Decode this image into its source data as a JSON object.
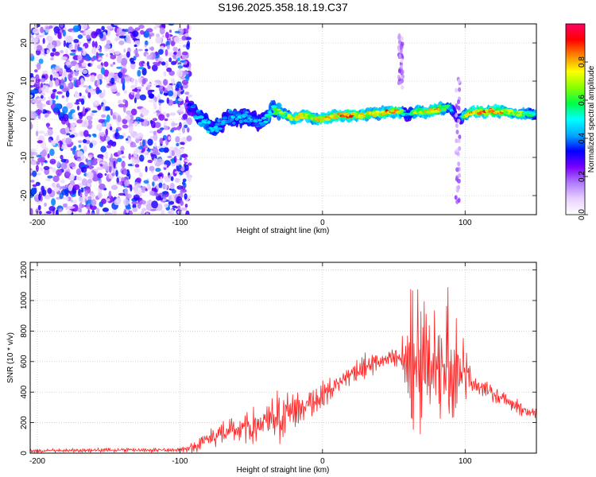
{
  "title": "S196.2025.358.18.19.C37",
  "chart_data": [
    {
      "type": "heatmap",
      "xlabel": "Height of straight line (km)",
      "ylabel": "Frequency (Hz)",
      "xlim": [
        -205,
        150
      ],
      "ylim": [
        -25,
        25
      ],
      "xticks": [
        -200,
        -100,
        0,
        100
      ],
      "yticks": [
        -20,
        -10,
        0,
        10,
        20
      ],
      "colorbar": {
        "label": "Normalized spectral amplitude",
        "range": [
          0,
          1
        ],
        "ticks": [
          "0.0",
          "0.2",
          "0.4",
          "0.6",
          "0.8"
        ],
        "colors": [
          "#ffffff",
          "#e8d0ff",
          "#b07cff",
          "#7a00ff",
          "#0000ff",
          "#00aaff",
          "#00ffff",
          "#00ff44",
          "#88ff00",
          "#ffff00",
          "#ff8800",
          "#ff0000",
          "#ff0066"
        ]
      },
      "noise_region": {
        "x": [
          -205,
          -93
        ],
        "amplitude": 0.35
      },
      "ridge": {
        "x": [
          -95,
          -90,
          -85,
          -80,
          -75,
          -70,
          -65,
          -60,
          -55,
          -50,
          -45,
          -40,
          -35,
          -30,
          -25,
          -20,
          -15,
          -10,
          -5,
          0,
          5,
          10,
          15,
          20,
          25,
          30,
          35,
          40,
          45,
          50,
          55,
          60,
          65,
          70,
          75,
          80,
          85,
          90,
          95,
          100,
          105,
          110,
          115,
          120,
          125,
          130,
          135,
          140,
          145,
          150
        ],
        "freq": [
          4,
          2,
          0,
          -2,
          -2,
          -1,
          1,
          0,
          1,
          0,
          -1,
          0,
          3,
          2,
          1,
          0,
          1,
          1,
          0,
          0,
          0.5,
          1,
          1,
          1,
          1,
          1,
          1.5,
          1.5,
          2,
          2,
          2,
          1,
          2,
          2,
          2,
          2.5,
          3,
          3,
          0,
          1,
          2,
          2,
          2,
          2,
          2,
          2,
          1.5,
          1.5,
          1.5,
          1.5
        ],
        "amp": [
          0.3,
          0.45,
          0.5,
          0.5,
          0.5,
          0.45,
          0.5,
          0.5,
          0.5,
          0.5,
          0.45,
          0.5,
          0.6,
          0.7,
          0.7,
          0.75,
          0.8,
          0.75,
          0.75,
          0.85,
          0.8,
          0.85,
          0.9,
          0.9,
          0.8,
          0.8,
          0.75,
          0.8,
          0.9,
          0.9,
          0.8,
          0.4,
          0.7,
          0.8,
          0.75,
          0.9,
          0.7,
          0.5,
          0.3,
          0.7,
          0.85,
          0.9,
          0.9,
          0.9,
          0.85,
          0.8,
          0.75,
          0.7,
          0.65,
          0.6
        ]
      }
    },
    {
      "type": "line",
      "xlabel": "Height of straight line (km)",
      "ylabel": "SNR (10 * v/v)",
      "xlim": [
        -205,
        150
      ],
      "ylim": [
        0,
        1250
      ],
      "xticks": [
        -200,
        -100,
        0,
        100
      ],
      "yticks": [
        0,
        200,
        400,
        600,
        800,
        1000,
        1200
      ],
      "color": "#ff2020",
      "series": [
        {
          "name": "SNR",
          "x": [
            -205,
            -180,
            -150,
            -120,
            -100,
            -90,
            -80,
            -70,
            -60,
            -50,
            -40,
            -30,
            -20,
            -10,
            0,
            10,
            20,
            30,
            40,
            50,
            55,
            60,
            65,
            70,
            75,
            80,
            85,
            90,
            95,
            100,
            105,
            110,
            120,
            130,
            140,
            150
          ],
          "envelope": [
            15,
            18,
            20,
            20,
            22,
            40,
            100,
            130,
            150,
            170,
            200,
            240,
            280,
            330,
            380,
            450,
            520,
            570,
            600,
            620,
            620,
            600,
            580,
            560,
            560,
            580,
            600,
            600,
            580,
            520,
            470,
            440,
            390,
            340,
            290,
            240
          ],
          "spread": [
            12,
            12,
            12,
            12,
            12,
            30,
            60,
            80,
            70,
            110,
            90,
            160,
            100,
            120,
            80,
            60,
            60,
            70,
            60,
            60,
            80,
            300,
            650,
            450,
            320,
            330,
            360,
            420,
            380,
            150,
            60,
            50,
            50,
            40,
            40,
            40
          ]
        }
      ]
    }
  ]
}
